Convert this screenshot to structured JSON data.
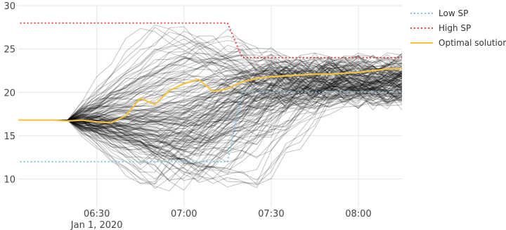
{
  "chart_data": {
    "type": "line",
    "x_unit": "datetime",
    "xlim": [
      "2020-01-01 06:03",
      "2020-01-01 08:15"
    ],
    "ylim": [
      6.8,
      30
    ],
    "grid": true,
    "legend_position": "top-right",
    "x_tick_labels": [
      "06:30",
      "07:00",
      "07:30",
      "08:00"
    ],
    "x_tick_values": [
      "2020-01-01 06:30",
      "2020-01-01 07:00",
      "2020-01-01 07:30",
      "2020-01-01 08:00"
    ],
    "x_date_label": "Jan 1, 2020",
    "y_ticks": [
      10,
      15,
      20,
      25,
      30
    ],
    "x": [
      "06:00",
      "06:05",
      "06:10",
      "06:15",
      "06:20",
      "06:25",
      "06:30",
      "06:35",
      "06:40",
      "06:45",
      "06:50",
      "06:55",
      "07:00",
      "07:05",
      "07:10",
      "07:15",
      "07:20",
      "07:25",
      "07:30",
      "07:35",
      "07:40",
      "07:45",
      "07:50",
      "07:55",
      "08:00",
      "08:05",
      "08:10",
      "08:15"
    ],
    "series": [
      {
        "name": "Low SP",
        "color": "#7ec8e3",
        "dash": "dot",
        "x": [
          "06:00",
          "06:50",
          "07:15",
          "07:20",
          "08:15"
        ],
        "values": [
          12,
          12,
          12,
          20,
          20
        ]
      },
      {
        "name": "High SP",
        "color": "#e84a4a",
        "dash": "dot",
        "x": [
          "06:00",
          "06:50",
          "07:15",
          "07:20",
          "08:15"
        ],
        "values": [
          28,
          28,
          28,
          24,
          24
        ]
      },
      {
        "name": "Optimal solution",
        "color": "#f5c242",
        "dash": "solid",
        "x": [
          "06:00",
          "06:05",
          "06:10",
          "06:15",
          "06:20",
          "06:25",
          "06:30",
          "06:35",
          "06:40",
          "06:45",
          "06:50",
          "06:55",
          "07:00",
          "07:05",
          "07:10",
          "07:15",
          "07:20",
          "07:25",
          "07:30",
          "07:35",
          "07:40",
          "07:45",
          "07:50",
          "07:55",
          "08:00",
          "08:05",
          "08:10",
          "08:15"
        ],
        "values": [
          16.8,
          16.8,
          16.8,
          16.8,
          16.7,
          16.8,
          16.6,
          16.5,
          17.3,
          19.3,
          18.6,
          20.2,
          21.0,
          21.5,
          20.1,
          20.4,
          21.2,
          21.6,
          21.8,
          21.9,
          22.0,
          22.1,
          22.1,
          22.2,
          22.3,
          22.5,
          22.7,
          22.7
        ]
      }
    ],
    "ensemble": {
      "color": "#000000",
      "count": 160,
      "start": 16.8,
      "flat_until": "06:20",
      "center_path": [
        16.8,
        16.8,
        16.8,
        16.8,
        16.8,
        16.8,
        16.8,
        16.6,
        16.5,
        16.6,
        16.4,
        16.2,
        16.0,
        15.7,
        16.4,
        18.0,
        19.0,
        19.6,
        20.2,
        20.5,
        20.7,
        20.8,
        21.0,
        21.1,
        21.2,
        21.3,
        21.4,
        21.4
      ],
      "max_deviation_up": 12,
      "max_deviation_down": 9
    }
  }
}
